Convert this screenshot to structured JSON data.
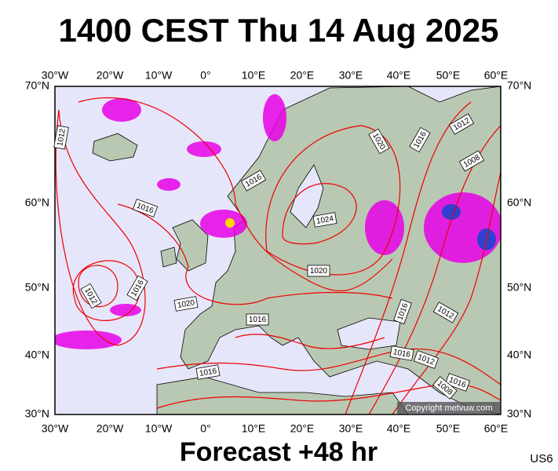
{
  "title": "1400 CEST Thu 14 Aug 2025",
  "map": {
    "longitude_labels": [
      "30°W",
      "20°W",
      "10°W",
      "0°",
      "10°E",
      "20°E",
      "30°E",
      "40°E",
      "50°E",
      "60°E"
    ],
    "latitude_labels": [
      "70°N",
      "60°N",
      "50°N",
      "40°N",
      "30°N"
    ],
    "isobar_labels": [
      "1012",
      "1016",
      "1016",
      "1020",
      "1016",
      "1012",
      "1008",
      "1024",
      "1020",
      "1012",
      "1016",
      "1020",
      "1016",
      "1016",
      "1012",
      "1016",
      "1012",
      "1016",
      "1008",
      "1016"
    ],
    "copyright": "Copyright metvuw.com"
  },
  "footer": {
    "forecast": "Forecast +48 hr",
    "code": "US6"
  }
}
